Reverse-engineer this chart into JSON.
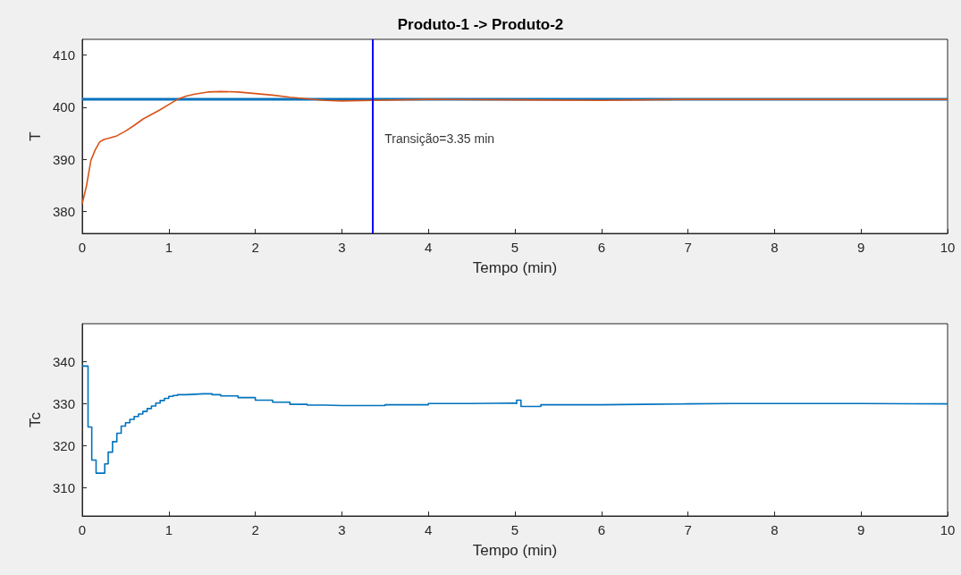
{
  "chart_data": [
    {
      "type": "line",
      "title": "Produto-1 -> Produto-2",
      "xlabel": "Tempo (min)",
      "ylabel": "T",
      "xlim": [
        0,
        10
      ],
      "xticks": [
        0,
        1,
        2,
        3,
        4,
        5,
        6,
        7,
        8,
        9,
        10
      ],
      "ylim": [
        375.8,
        413
      ],
      "yticks": [
        380,
        390,
        400,
        410
      ],
      "grid": false,
      "series": [
        {
          "color": "#0072bd",
          "x": [
            0,
            10
          ],
          "values": [
            401.5,
            401.5
          ]
        },
        {
          "color": "#d95319",
          "x": [
            0,
            0.05,
            0.1,
            0.15,
            0.2,
            0.25,
            0.3,
            0.4,
            0.5,
            0.6,
            0.7,
            0.8,
            0.9,
            1.0,
            1.1,
            1.2,
            1.3,
            1.45,
            1.6,
            1.8,
            2.0,
            2.2,
            2.4,
            2.6,
            2.8,
            3.0,
            3.35,
            4,
            5,
            6,
            7,
            8,
            10
          ],
          "values": [
            381.5,
            385,
            389.8,
            391.8,
            393.3,
            393.8,
            394,
            394.5,
            395.4,
            396.5,
            397.7,
            398.6,
            399.5,
            400.5,
            401.5,
            402.1,
            402.5,
            402.9,
            403,
            402.9,
            402.6,
            402.3,
            401.9,
            401.6,
            401.3,
            401.2,
            401.3,
            401.5,
            401.4,
            401.3,
            401.5,
            401.5,
            401.5
          ]
        }
      ],
      "ref_lines": [
        {
          "axis": "x",
          "value": 3.35,
          "color": "#0000ff"
        }
      ],
      "annotations": [
        {
          "text": "Transição=3.35 min",
          "x": 3.35,
          "y": 394
        }
      ]
    },
    {
      "type": "step",
      "xlabel": "Tempo (min)",
      "ylabel": "Tc",
      "xlim": [
        0,
        10
      ],
      "xticks": [
        0,
        1,
        2,
        3,
        4,
        5,
        6,
        7,
        8,
        9,
        10
      ],
      "ylim": [
        303.3,
        349.1
      ],
      "yticks": [
        310,
        320,
        330,
        340
      ],
      "grid": false,
      "series": [
        {
          "color": "#0072bd",
          "x": [
            0,
            0.067,
            0.11,
            0.16,
            0.26,
            0.3,
            0.35,
            0.4,
            0.45,
            0.5,
            0.55,
            0.6,
            0.65,
            0.7,
            0.75,
            0.8,
            0.85,
            0.9,
            0.95,
            1.0,
            1.05,
            1.1,
            1.2,
            1.3,
            1.4,
            1.5,
            1.6,
            1.8,
            2.0,
            2.2,
            2.4,
            2.6,
            2.8,
            3.0,
            3.5,
            4.0,
            4.5,
            5.0,
            5.02,
            5.07,
            5.3,
            5.5,
            6,
            6.5,
            7,
            7.5,
            8,
            9,
            10
          ],
          "values": [
            339,
            324.5,
            316.6,
            313.5,
            315.7,
            318.5,
            321,
            323,
            324.7,
            325.5,
            326.3,
            327,
            327.6,
            328.2,
            328.9,
            329.5,
            330.2,
            330.8,
            331.3,
            331.8,
            332,
            332.2,
            332.3,
            332.4,
            332.4,
            332.2,
            331.9,
            331.5,
            330.9,
            330.4,
            329.9,
            329.7,
            329.6,
            329.6,
            329.8,
            330.1,
            330.2,
            330.1,
            330.9,
            329.4,
            329.8,
            329.8,
            329.9,
            330,
            330.1,
            330.1,
            330.1,
            330,
            330
          ]
        }
      ]
    }
  ]
}
